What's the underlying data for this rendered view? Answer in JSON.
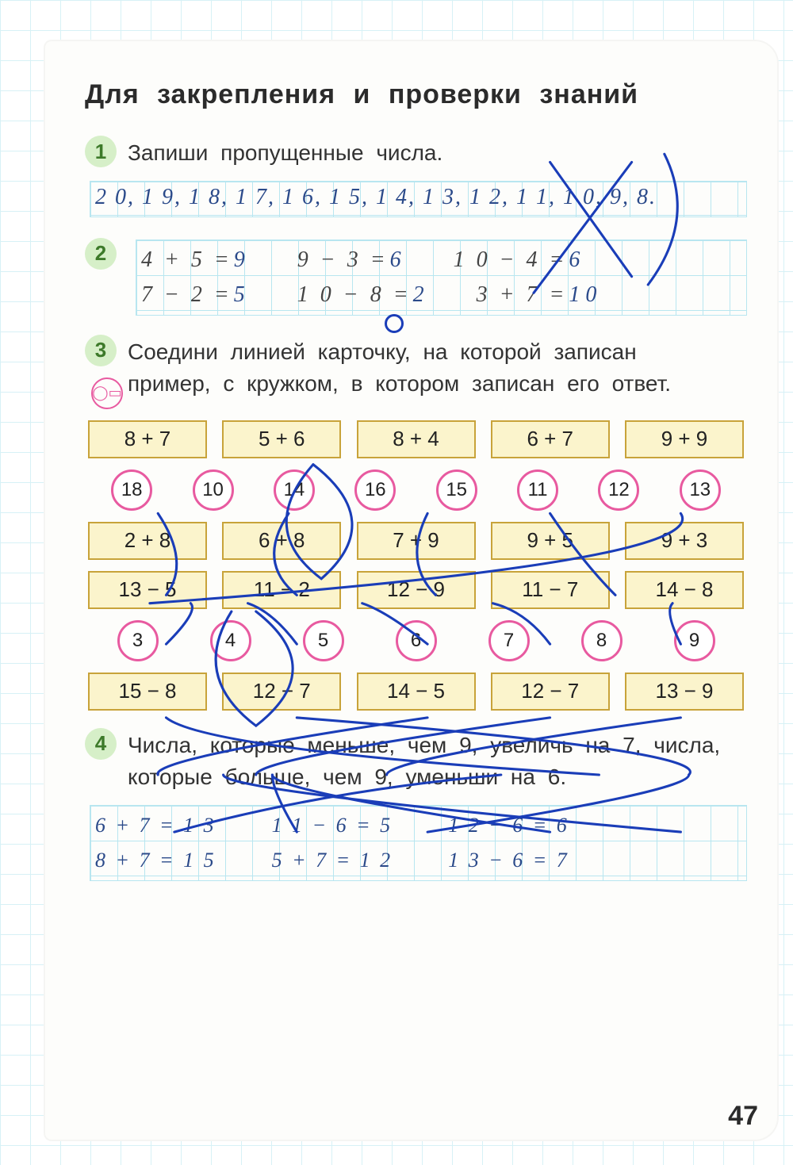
{
  "colors": {
    "grid": "#b8e6f0",
    "page_bg": "#fdfdfb",
    "badge_bg": "#d6efc8",
    "badge_text": "#3d7a2a",
    "card_bg": "#fbf4cc",
    "card_border": "#c8a33a",
    "circle_border": "#e85aa0",
    "handwriting": "#2b4a8a",
    "pen": "#1a3db8",
    "text": "#2b2b2b"
  },
  "title": "Для закрепления и проверки знаний",
  "page_number": "47",
  "ex1": {
    "num": "1",
    "prompt": "Запиши пропущенные числа.",
    "sequence": "2 0, 1 9, 1 8, 1 7, 1 6, 1 5, 1 4, 1 3, 1 2, 1 1, 1 0, 9, 8."
  },
  "ex2": {
    "num": "2",
    "rows": [
      [
        {
          "printed": "4 + 5 =",
          "hand": "9"
        },
        {
          "printed": "9 − 3 =",
          "hand": "6"
        },
        {
          "printed": "1 0 − 4 =",
          "hand": "6"
        }
      ],
      [
        {
          "printed": "7 − 2 =",
          "hand": "5"
        },
        {
          "printed": "1 0 − 8 =",
          "hand": "2"
        },
        {
          "printed": "3 + 7 =",
          "hand": "1 0"
        }
      ]
    ]
  },
  "ex3": {
    "num": "3",
    "prompt": "Соедини линией карточку, на которой записан пример, с кружком, в котором записан его ответ.",
    "rows": [
      {
        "type": "cards",
        "items": [
          "8 + 7",
          "5 + 6",
          "8 + 4",
          "6 + 7",
          "9 + 9"
        ]
      },
      {
        "type": "circles",
        "items": [
          "18",
          "10",
          "14",
          "16",
          "15",
          "11",
          "12",
          "13"
        ]
      },
      {
        "type": "cards",
        "items": [
          "2 + 8",
          "6 + 8",
          "7 + 9",
          "9 + 5",
          "9 + 3"
        ]
      },
      {
        "type": "cards",
        "items": [
          "13 − 5",
          "11 − 2",
          "12 − 9",
          "11 − 7",
          "14 − 8"
        ]
      },
      {
        "type": "circles",
        "items": [
          "3",
          "4",
          "5",
          "6",
          "7",
          "8",
          "9"
        ]
      },
      {
        "type": "cards",
        "items": [
          "15 − 8",
          "12 − 7",
          "14 − 5",
          "12 − 7",
          "13 − 9"
        ]
      }
    ]
  },
  "ex4": {
    "num": "4",
    "prompt": "Числа, которые меньше, чем 9, увеличь на 7, числа, которые больше, чем 9, уменьши на 6.",
    "rows": [
      [
        "6 + 7 = 1 3",
        "1 1 − 6 = 5",
        "1 2 − 6 = 6"
      ],
      [
        "8 + 7 = 1 5",
        "5 + 7 = 1 2",
        "1 3 − 6 = 7"
      ]
    ]
  }
}
